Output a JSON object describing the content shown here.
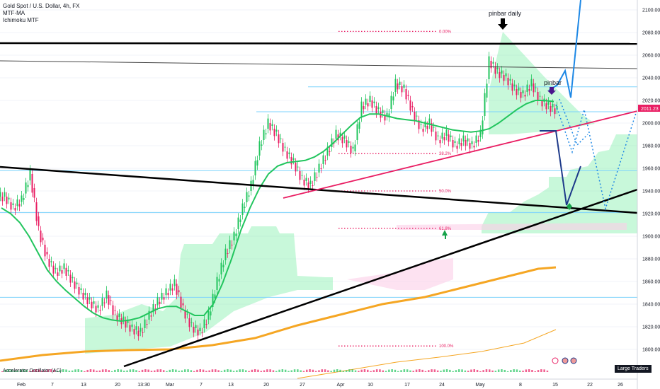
{
  "header": {
    "symbol_line": "Gold Spot / U.S. Dollar, 4h, FX",
    "indicator_1": "MTF-MA",
    "indicator_2": "Ichimoku MTF"
  },
  "oscillator": {
    "name": "Accelerator Oscillator (AC)"
  },
  "large_traders_label": "Large Traders",
  "colors": {
    "bull": "#089981",
    "bear": "#f23645",
    "ma": "#22c55e",
    "trendline": "#000000",
    "support": "#e91e63",
    "projection": "#1e3a8a",
    "projection_alt": "#1e88e5",
    "cloud": "#86efac",
    "slow_ma": "#f5a623",
    "fib": "#e91e63",
    "price_tag": "#e91e63"
  },
  "chart_data": {
    "type": "line",
    "instrument": "XAUUSD",
    "timeframe": "4h",
    "x_tick_labels": [
      "Feb",
      "7",
      "13",
      "20",
      "13:30",
      "Mar",
      "7",
      "13",
      "20",
      "27",
      "Apr",
      "10",
      "17",
      "24",
      "May",
      "8",
      "15",
      "22",
      "26"
    ],
    "y_tick_labels": [
      "2100.00",
      "2080.00",
      "2060.00",
      "2040.00",
      "2020.00",
      "2000.00",
      "1980.00",
      "1960.00",
      "1940.00",
      "1920.00",
      "1900.00",
      "1880.00",
      "1860.00",
      "1840.00",
      "1820.00",
      "1800.00"
    ],
    "ylim": [
      1790,
      2105
    ],
    "last_price_label": "2011.23",
    "price_series": [
      1935,
      1925,
      1932,
      1955,
      1905,
      1880,
      1868,
      1872,
      1860,
      1850,
      1842,
      1835,
      1848,
      1830,
      1825,
      1818,
      1815,
      1830,
      1842,
      1850,
      1858,
      1835,
      1820,
      1815,
      1830,
      1860,
      1885,
      1900,
      1925,
      1945,
      1980,
      2000,
      1990,
      1975,
      1965,
      1950,
      1945,
      1960,
      1975,
      1990,
      1985,
      1975,
      2015,
      2020,
      2010,
      2005,
      2035,
      2030,
      2010,
      1995,
      2000,
      1985,
      1990,
      1980,
      1985,
      1980,
      1990,
      2055,
      2045,
      2040,
      2030,
      2025,
      2035,
      2020,
      2015,
      2011
    ],
    "ma_series": [
      1925,
      1920,
      1912,
      1900,
      1885,
      1870,
      1860,
      1852,
      1845,
      1838,
      1832,
      1828,
      1826,
      1825,
      1826,
      1828,
      1832,
      1836,
      1838,
      1838,
      1834,
      1830,
      1830,
      1840,
      1858,
      1880,
      1905,
      1925,
      1942,
      1955,
      1962,
      1965,
      1966,
      1967,
      1970,
      1975,
      1982,
      1990,
      1998,
      2005,
      2008,
      2008,
      2006,
      2004,
      2003,
      2002,
      2000,
      1998,
      1996,
      1994,
      1993,
      1992,
      1993,
      1995,
      2000,
      2006,
      2012,
      2017,
      2020,
      2020,
      2019
    ],
    "fib_levels": [
      {
        "label": "0.00%",
        "price": 2081
      },
      {
        "label": "38.2%",
        "price": 1973
      },
      {
        "label": "50.0%",
        "price": 1940
      },
      {
        "label": "61.8%",
        "price": 1907
      },
      {
        "label": "100.0%",
        "price": 1803
      }
    ],
    "annotations": [
      {
        "text": "pinbar daily",
        "price": 2093
      },
      {
        "text": "pinbar",
        "price": 2032
      }
    ],
    "horizontal_levels": [
      2032,
      2010,
      1958,
      1921,
      1846
    ]
  }
}
